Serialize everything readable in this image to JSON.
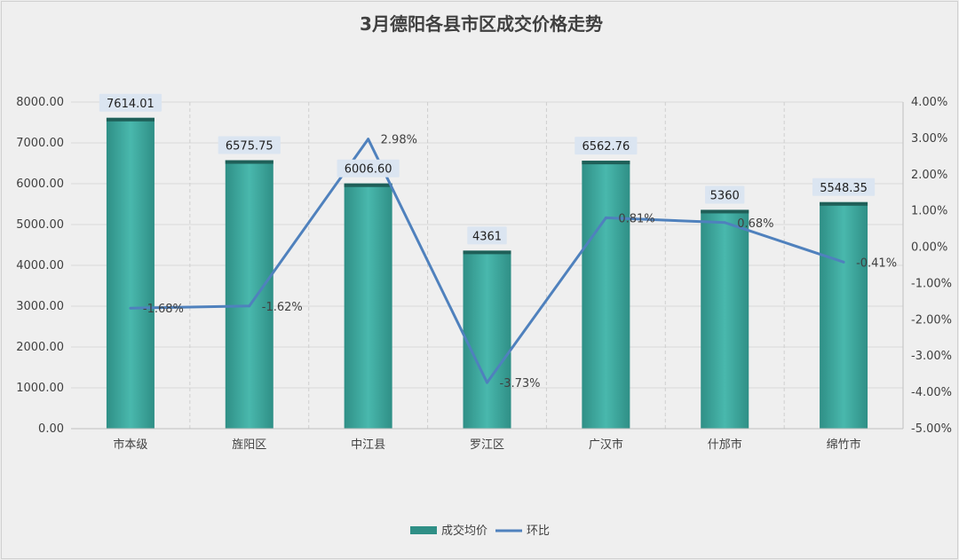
{
  "chart_data": {
    "type": "bar",
    "title": "3月德阳各县市区成交价格走势",
    "categories": [
      "市本级",
      "旌阳区",
      "中江县",
      "罗江区",
      "广汉市",
      "什邡市",
      "绵竹市"
    ],
    "series": [
      {
        "name": "成交均价",
        "type": "bar",
        "axis": "left",
        "values": [
          7614.01,
          6575.75,
          6006.6,
          4361,
          6562.76,
          5360,
          5548.35
        ],
        "labels": [
          "7614.01",
          "6575.75",
          "6006.60",
          "4361",
          "6562.76",
          "5360",
          "5548.35"
        ],
        "color": "#45b5aa"
      },
      {
        "name": "环比",
        "type": "line",
        "axis": "right",
        "values": [
          -1.68,
          -1.62,
          2.98,
          -3.73,
          0.81,
          0.68,
          -0.41
        ],
        "labels": [
          "-1.68%",
          "-1.62%",
          "2.98%",
          "-3.73%",
          "0.81%",
          "0.68%",
          "-0.41%"
        ],
        "color": "#4f81bd"
      }
    ],
    "y_left": {
      "min": 0,
      "max": 8000,
      "step": 1000,
      "ticks": [
        "0.00",
        "1000.00",
        "2000.00",
        "3000.00",
        "4000.00",
        "5000.00",
        "6000.00",
        "7000.00",
        "8000.00"
      ]
    },
    "y_right": {
      "min": -5,
      "max": 4,
      "step": 1,
      "ticks": [
        "-5.00%",
        "-4.00%",
        "-3.00%",
        "-2.00%",
        "-1.00%",
        "0.00%",
        "1.00%",
        "2.00%",
        "3.00%",
        "4.00%"
      ]
    },
    "grid": "horizontal solid, vertical dashed",
    "legend_position": "bottom-center"
  }
}
